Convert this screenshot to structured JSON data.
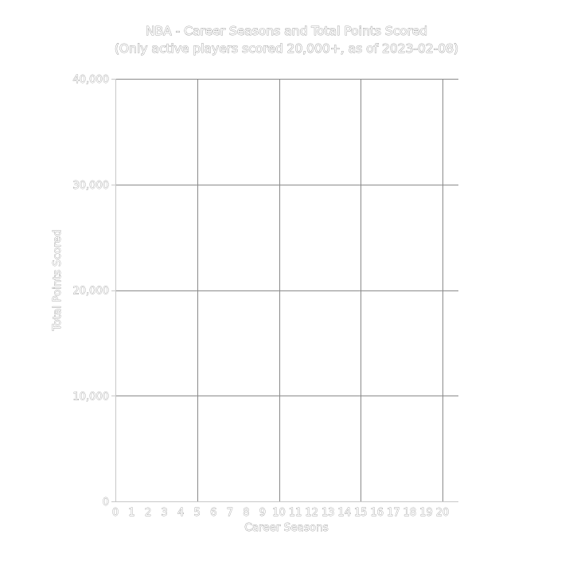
{
  "chart_data": {
    "type": "scatter",
    "title": [
      "NBA - Career Seasons and Total Points Scored",
      "(Only active players scored 20,000+, as of 2023-02-08)"
    ],
    "xlabel": "Career Seasons",
    "ylabel": "Total Points Scored",
    "x_ticks": [
      "0",
      "1",
      "2",
      "3",
      "4",
      "5",
      "6",
      "7",
      "8",
      "9",
      "10",
      "11",
      "12",
      "13",
      "14",
      "15",
      "16",
      "17",
      "18",
      "19",
      "20"
    ],
    "y_ticks": [
      {
        "value": 0,
        "label": "0"
      },
      {
        "value": 10000,
        "label": "10,000"
      },
      {
        "value": 20000,
        "label": "20,000"
      },
      {
        "value": 30000,
        "label": "30,000"
      },
      {
        "value": 40000,
        "label": "40,000"
      }
    ],
    "xlim": [
      0,
      21
    ],
    "ylim": [
      0,
      40000
    ],
    "x_gridlines": [
      5,
      10,
      15,
      20
    ],
    "grid": true,
    "series": [
      {
        "points": []
      }
    ]
  }
}
